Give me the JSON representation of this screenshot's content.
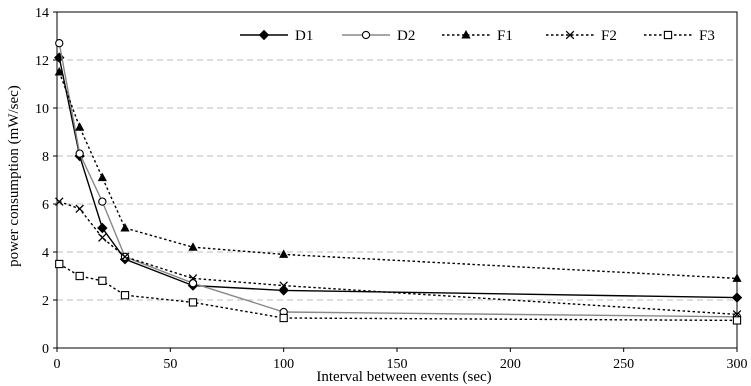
{
  "chart_data": {
    "type": "line",
    "title": "",
    "xlabel": "Interval between events (sec)",
    "ylabel": "power consumption (mW/sec)",
    "xlim": [
      0,
      300
    ],
    "ylim": [
      0,
      14
    ],
    "xticks": [
      0,
      50,
      100,
      150,
      200,
      250,
      300
    ],
    "yticks": [
      0,
      2,
      4,
      6,
      8,
      10,
      12,
      14
    ],
    "grid": "horizontal dashed",
    "legend_position": "top-right",
    "series": [
      {
        "name": "D1",
        "marker": "filled-diamond",
        "line": "solid",
        "color": "#000000",
        "x": [
          1,
          10,
          20,
          30,
          60,
          100,
          300
        ],
        "y": [
          12.1,
          8.0,
          5.0,
          3.7,
          2.6,
          2.4,
          2.1
        ]
      },
      {
        "name": "D2",
        "marker": "open-circle",
        "line": "solid",
        "color": "#888888",
        "x": [
          1,
          10,
          20,
          30,
          60,
          100,
          300
        ],
        "y": [
          12.7,
          8.1,
          6.1,
          3.8,
          2.7,
          1.5,
          1.3
        ]
      },
      {
        "name": "F1",
        "marker": "filled-triangle",
        "line": "dotted",
        "color": "#000000",
        "x": [
          1,
          10,
          20,
          30,
          60,
          100,
          300
        ],
        "y": [
          11.5,
          9.2,
          7.1,
          5.0,
          4.2,
          3.9,
          2.9
        ]
      },
      {
        "name": "F2",
        "marker": "cross",
        "line": "dotted",
        "color": "#000000",
        "x": [
          1,
          10,
          20,
          30,
          60,
          100,
          300
        ],
        "y": [
          6.1,
          5.8,
          4.6,
          3.8,
          2.9,
          2.6,
          1.4
        ]
      },
      {
        "name": "F3",
        "marker": "open-square",
        "line": "dotted",
        "color": "#000000",
        "x": [
          1,
          10,
          20,
          30,
          60,
          100,
          300
        ],
        "y": [
          3.5,
          3.0,
          2.8,
          2.2,
          1.9,
          1.25,
          1.15
        ]
      }
    ]
  }
}
